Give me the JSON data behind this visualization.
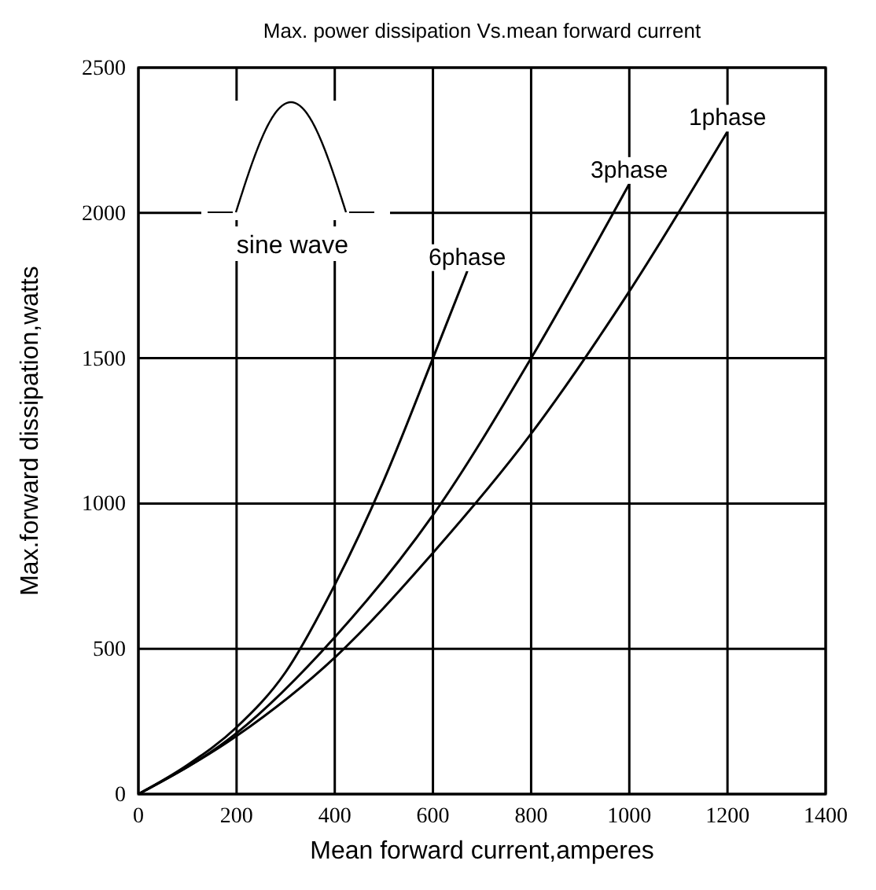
{
  "chart_data": {
    "type": "line",
    "title": "Max. power dissipation  Vs.mean  forward  current",
    "xlabel": "Mean forward  current,amperes",
    "ylabel": "Max.forward  dissipation,watts",
    "xlim": [
      0,
      1400
    ],
    "xticks": [
      0,
      200,
      400,
      600,
      800,
      1000,
      1200,
      1400
    ],
    "ylim": [
      0,
      2500
    ],
    "yticks": [
      0,
      500,
      1000,
      1500,
      2000,
      2500
    ],
    "grid": true,
    "line_style": "solid",
    "series": [
      {
        "name": "6phase",
        "color": "#000000",
        "x": [
          0,
          100,
          200,
          300,
          400,
          500,
          600,
          670
        ],
        "values": [
          0,
          100,
          230,
          420,
          720,
          1080,
          1500,
          1800
        ]
      },
      {
        "name": "3phase",
        "color": "#000000",
        "x": [
          0,
          200,
          400,
          600,
          800,
          1000
        ],
        "values": [
          0,
          210,
          540,
          960,
          1500,
          2100
        ]
      },
      {
        "name": "1phase",
        "color": "#000000",
        "x": [
          0,
          200,
          400,
          600,
          800,
          1000,
          1200
        ],
        "values": [
          0,
          200,
          470,
          830,
          1240,
          1730,
          2280
        ]
      }
    ],
    "annotations": [
      "sine wave"
    ]
  }
}
